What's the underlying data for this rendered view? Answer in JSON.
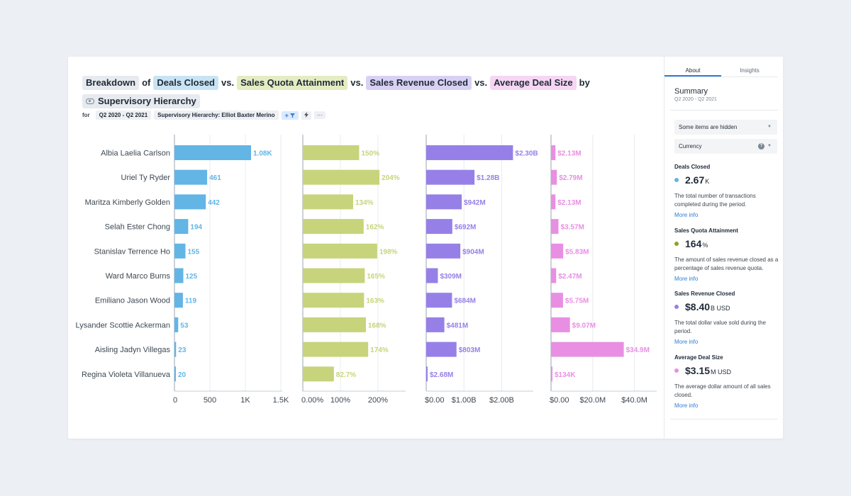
{
  "title": {
    "breakdown": "Breakdown",
    "of": "of",
    "vs": "vs.",
    "by": "by",
    "metric1": "Deals Closed",
    "metric2": "Sales Quota Attainment",
    "metric3": "Sales Revenue Closed",
    "metric4": "Average Deal Size",
    "dimension": "Supervisory Hierarchy"
  },
  "filters": {
    "for_label": "for",
    "period": "Q2 2020 - Q2 2021",
    "hierarchy": "Supervisory Hierarchy: Elliot Baxter Merino",
    "add": "+",
    "more": "···"
  },
  "colors": {
    "deals": "#62b5e5",
    "quota": "#c7d47b",
    "revenue": "#9680e8",
    "avg": "#e88fe3"
  },
  "chart_data": {
    "type": "bar",
    "orientation": "horizontal",
    "categories": [
      "Albia Laelia Carlson",
      "Uriel Ty Ryder",
      "Maritza Kimberly Golden",
      "Selah Ester Chong",
      "Stanislav Terrence Ho",
      "Ward Marco Burns",
      "Emiliano Jason Wood",
      "Lysander Scottie Ackerman",
      "Aisling Jadyn Villegas",
      "Regina Violeta Villanueva"
    ],
    "series": [
      {
        "name": "Deals Closed",
        "values": [
          1080,
          461,
          442,
          194,
          155,
          125,
          119,
          53,
          23,
          20
        ],
        "labels": [
          "1.08K",
          "461",
          "442",
          "194",
          "155",
          "125",
          "119",
          "53",
          "23",
          "20"
        ],
        "xlim": [
          0,
          1500
        ],
        "ticks": [
          0,
          500,
          1000,
          1500
        ],
        "tick_labels": [
          "0",
          "500",
          "1K",
          "1.5K"
        ]
      },
      {
        "name": "Sales Quota Attainment",
        "values": [
          150,
          204,
          134,
          162,
          198,
          165,
          163,
          168,
          174,
          82.7
        ],
        "labels": [
          "150%",
          "204%",
          "134%",
          "162%",
          "198%",
          "165%",
          "163%",
          "168%",
          "174%",
          "82.7%"
        ],
        "xlim": [
          0,
          270
        ],
        "ticks": [
          0,
          100,
          200
        ],
        "tick_labels": [
          "0.00%",
          "100%",
          "200%"
        ]
      },
      {
        "name": "Sales Revenue Closed",
        "values": [
          2.3,
          1.28,
          0.942,
          0.692,
          0.904,
          0.309,
          0.684,
          0.481,
          0.803,
          0.00268
        ],
        "labels": [
          "$2.30B",
          "$1.28B",
          "$942M",
          "$692M",
          "$904M",
          "$309M",
          "$684M",
          "$481M",
          "$803M",
          "$2.68M"
        ],
        "xlim": [
          0,
          2.8
        ],
        "ticks": [
          0,
          1,
          2
        ],
        "tick_labels": [
          "$0.00",
          "$1.00B",
          "$2.00B"
        ]
      },
      {
        "name": "Average Deal Size",
        "values": [
          2.13,
          2.79,
          2.13,
          3.57,
          5.83,
          2.47,
          5.75,
          9.07,
          34.9,
          0.134
        ],
        "labels": [
          "$2.13M",
          "$2.79M",
          "$2.13M",
          "$3.57M",
          "$5.83M",
          "$2.47M",
          "$5.75M",
          "$9.07M",
          "$34.9M",
          "$134K"
        ],
        "xlim": [
          0,
          50
        ],
        "ticks": [
          0,
          20,
          40
        ],
        "tick_labels": [
          "$0.00",
          "$20.0M",
          "$40.0M"
        ]
      }
    ]
  },
  "panel": {
    "tabs": [
      "About",
      "Insights"
    ],
    "summary_title": "Summary",
    "summary_period": "Q2 2020 - Q2 2021",
    "hidden_items": "Some items are hidden",
    "currency": "Currency",
    "help": "?",
    "more_info": "More info",
    "metrics": [
      {
        "name": "Deals Closed",
        "value": "2.67",
        "unit": "K",
        "color": "#62b5e5",
        "desc": "The total number of transactions completed during the period."
      },
      {
        "name": "Sales Quota Attainment",
        "value": "164",
        "unit": "%",
        "color": "#8da31f",
        "desc": "The amount of sales revenue closed as a percentage of sales revenue quota."
      },
      {
        "name": "Sales Revenue Closed",
        "value": "$8.40",
        "unit": "B USD",
        "color": "#9680e8",
        "desc": "The total dollar value sold during the period."
      },
      {
        "name": "Average Deal Size",
        "value": "$3.15",
        "unit": "M USD",
        "color": "#e88fe3",
        "desc": "The average dollar amount of all sales closed."
      }
    ]
  }
}
